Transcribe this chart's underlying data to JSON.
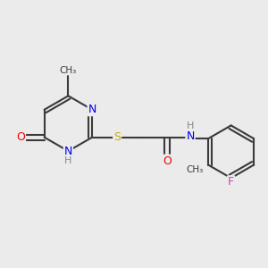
{
  "background_color": "#ebebeb",
  "bond_color": "#3a3a3a",
  "bond_width": 1.5,
  "atom_colors": {
    "N": "#0000ee",
    "O": "#ee0000",
    "S": "#ccaa00",
    "F": "#cc44bb",
    "C": "#3a3a3a",
    "H": "#888888"
  },
  "font_size": 9,
  "fig_size": [
    3.0,
    3.0
  ],
  "dpi": 100
}
